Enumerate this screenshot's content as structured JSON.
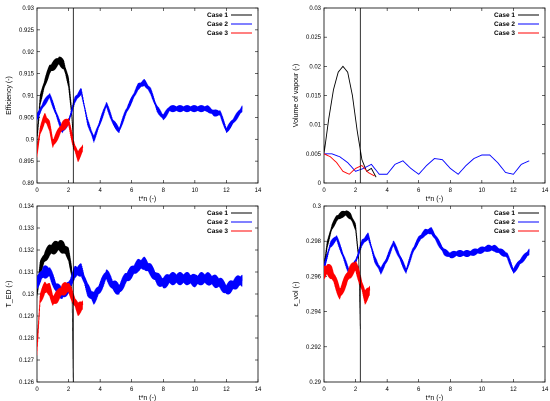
{
  "colors": {
    "case1": "#000000",
    "case2": "#0000ff",
    "case3": "#ff0000"
  },
  "chart_data": [
    {
      "type": "line",
      "xlabel": "t*n (-)",
      "ylabel": "Efficiency (-)",
      "xlim": [
        0,
        14
      ],
      "ylim": [
        0.89,
        0.93
      ],
      "xticks": [
        "0",
        "2",
        "4",
        "6",
        "8",
        "10",
        "12",
        "14"
      ],
      "yticks": [
        "0.89",
        "0.895",
        "0.9",
        "0.905",
        "0.91",
        "0.915",
        "0.92",
        "0.925",
        "0.93"
      ],
      "vline": 2.3,
      "legend_position": "top-right",
      "series": [
        {
          "name": "Case 1",
          "x": [
            0,
            0.2,
            0.5,
            0.8,
            1.1,
            1.4,
            1.7,
            2.0,
            2.2,
            2.3
          ],
          "y": [
            0.9,
            0.909,
            0.913,
            0.916,
            0.917,
            0.918,
            0.917,
            0.913,
            0.906,
            0.9
          ],
          "band": 0.0012
        },
        {
          "name": "Case 2",
          "x": [
            0,
            0.4,
            0.8,
            1.2,
            1.6,
            2.0,
            2.4,
            2.8,
            3.2,
            3.6,
            4.0,
            4.4,
            4.8,
            5.2,
            5.6,
            6.0,
            6.4,
            6.8,
            7.2,
            7.6,
            8.0,
            8.4,
            8.8,
            9.2,
            9.6,
            10.0,
            10.4,
            10.8,
            11.2,
            11.6,
            12.0,
            12.4,
            12.8,
            13.0
          ],
          "y": [
            0.905,
            0.908,
            0.91,
            0.906,
            0.902,
            0.904,
            0.909,
            0.911,
            0.904,
            0.9,
            0.904,
            0.908,
            0.904,
            0.902,
            0.906,
            0.909,
            0.912,
            0.913,
            0.911,
            0.907,
            0.905,
            0.907,
            0.907,
            0.907,
            0.907,
            0.907,
            0.907,
            0.907,
            0.906,
            0.906,
            0.902,
            0.904,
            0.906,
            0.907
          ],
          "band": 0.0008
        },
        {
          "name": "Case 3",
          "x": [
            0,
            0.2,
            0.5,
            0.8,
            1.0,
            1.3,
            1.6,
            2.0,
            2.3,
            2.6,
            2.9
          ],
          "y": [
            0.897,
            0.902,
            0.905,
            0.903,
            0.899,
            0.901,
            0.903,
            0.904,
            0.899,
            0.896,
            0.898
          ],
          "band": 0.0012
        }
      ]
    },
    {
      "type": "line",
      "xlabel": "t*n (-)",
      "ylabel": "Volume of vapour (-)",
      "xlim": [
        0,
        14
      ],
      "ylim": [
        0,
        0.03
      ],
      "xticks": [
        "0",
        "2",
        "4",
        "6",
        "8",
        "10",
        "12",
        "14"
      ],
      "yticks": [
        "0",
        "0.005",
        "0.01",
        "0.015",
        "0.02",
        "0.025",
        "0.03"
      ],
      "vline": 2.3,
      "legend_position": "top-right",
      "series": [
        {
          "name": "Case 1",
          "x": [
            0,
            0.3,
            0.6,
            0.9,
            1.2,
            1.5,
            1.8,
            2.1,
            2.4,
            2.7,
            3.0,
            3.3
          ],
          "y": [
            0.005,
            0.011,
            0.016,
            0.019,
            0.02,
            0.019,
            0.015,
            0.009,
            0.004,
            0.002,
            0.0025,
            0.001
          ],
          "band": 0
        },
        {
          "name": "Case 2",
          "x": [
            0,
            0.5,
            1.0,
            1.5,
            2.0,
            2.5,
            3.0,
            3.5,
            4.0,
            4.5,
            5.0,
            5.5,
            6.0,
            6.5,
            7.0,
            7.5,
            8.0,
            8.5,
            9.0,
            9.5,
            10.0,
            10.5,
            11.0,
            11.5,
            12.0,
            12.5,
            13.0
          ],
          "y": [
            0.005,
            0.005,
            0.0045,
            0.0035,
            0.002,
            0.0025,
            0.0032,
            0.0015,
            0.0015,
            0.0032,
            0.0038,
            0.0025,
            0.0015,
            0.003,
            0.0042,
            0.004,
            0.0025,
            0.0015,
            0.003,
            0.0042,
            0.0048,
            0.0048,
            0.0035,
            0.0018,
            0.0015,
            0.0032,
            0.0038
          ],
          "band": 0
        },
        {
          "name": "Case 3",
          "x": [
            0,
            0.4,
            0.8,
            1.2,
            1.6,
            2.0,
            2.4,
            2.8,
            3.2
          ],
          "y": [
            0.005,
            0.0045,
            0.0035,
            0.002,
            0.0015,
            0.0025,
            0.003,
            0.0018,
            0.0012
          ],
          "band": 0
        }
      ]
    },
    {
      "type": "line",
      "xlabel": "t*n (-)",
      "ylabel": "T_ED (-)",
      "xlim": [
        0,
        14
      ],
      "ylim": [
        0.126,
        0.134
      ],
      "xticks": [
        "0",
        "2",
        "4",
        "6",
        "8",
        "10",
        "12",
        "14"
      ],
      "yticks": [
        "0.126",
        "0.127",
        "0.128",
        "0.129",
        "0.13",
        "0.131",
        "0.132",
        "0.133",
        "0.134"
      ],
      "vline": 2.3,
      "legend_position": "top-right",
      "series": [
        {
          "name": "Case 1",
          "x": [
            0,
            0.2,
            0.5,
            0.8,
            1.1,
            1.4,
            1.7,
            2.0,
            2.2,
            2.3
          ],
          "y": [
            0.13,
            0.1312,
            0.1317,
            0.132,
            0.1321,
            0.1322,
            0.1321,
            0.1318,
            0.131,
            0.126
          ],
          "band": 0.0003
        },
        {
          "name": "Case 2",
          "x": [
            0,
            0.4,
            0.8,
            1.2,
            1.6,
            2.0,
            2.4,
            2.8,
            3.2,
            3.6,
            4.0,
            4.4,
            4.8,
            5.2,
            5.6,
            6.0,
            6.4,
            6.8,
            7.2,
            7.6,
            8.0,
            8.4,
            8.8,
            9.2,
            9.6,
            10.0,
            10.4,
            10.8,
            11.2,
            11.6,
            12.0,
            12.4,
            12.8,
            13.0
          ],
          "y": [
            0.1305,
            0.131,
            0.131,
            0.1303,
            0.13,
            0.1303,
            0.131,
            0.1311,
            0.1302,
            0.1298,
            0.1303,
            0.1309,
            0.1304,
            0.1302,
            0.1307,
            0.131,
            0.1313,
            0.1314,
            0.1311,
            0.1307,
            0.1305,
            0.1307,
            0.1307,
            0.1307,
            0.1307,
            0.1306,
            0.1307,
            0.1307,
            0.1306,
            0.1305,
            0.1302,
            0.1304,
            0.1306,
            0.1306
          ],
          "band": 0.0003
        },
        {
          "name": "Case 3",
          "x": [
            0,
            0.2,
            0.5,
            0.8,
            1.0,
            1.3,
            1.6,
            2.0,
            2.3,
            2.6,
            2.9
          ],
          "y": [
            0.1275,
            0.1298,
            0.1303,
            0.1302,
            0.1297,
            0.1299,
            0.1302,
            0.1303,
            0.1298,
            0.1293,
            0.1295
          ],
          "band": 0.0003
        }
      ]
    },
    {
      "type": "line",
      "xlabel": "t*n (-)",
      "ylabel": "ε_vol (-)",
      "xlim": [
        0,
        14
      ],
      "ylim": [
        0.29,
        0.3
      ],
      "xticks": [
        "0",
        "2",
        "4",
        "6",
        "8",
        "10",
        "12",
        "14"
      ],
      "yticks": [
        "0.29",
        "0.292",
        "0.294",
        "0.296",
        "0.298",
        "0.3"
      ],
      "vline": 2.3,
      "legend_position": "top-right",
      "series": [
        {
          "name": "Case 1",
          "x": [
            0,
            0.2,
            0.5,
            0.8,
            1.1,
            1.4,
            1.7,
            2.0,
            2.2,
            2.3
          ],
          "y": [
            0.2965,
            0.2978,
            0.2988,
            0.2993,
            0.2995,
            0.2996,
            0.2994,
            0.2988,
            0.297,
            0.293
          ],
          "band": 0.0002
        },
        {
          "name": "Case 2",
          "x": [
            0,
            0.4,
            0.8,
            1.2,
            1.6,
            2.0,
            2.4,
            2.8,
            3.2,
            3.6,
            4.0,
            4.4,
            4.8,
            5.2,
            5.6,
            6.0,
            6.4,
            6.8,
            7.2,
            7.6,
            8.0,
            8.4,
            8.8,
            9.2,
            9.6,
            10.0,
            10.4,
            10.8,
            11.2,
            11.6,
            12.0,
            12.4,
            12.8,
            13.0
          ],
          "y": [
            0.2965,
            0.2978,
            0.2982,
            0.2972,
            0.2962,
            0.2968,
            0.2979,
            0.2983,
            0.297,
            0.2963,
            0.297,
            0.2979,
            0.2971,
            0.2963,
            0.2974,
            0.2981,
            0.2985,
            0.2986,
            0.298,
            0.2974,
            0.2972,
            0.2973,
            0.2973,
            0.2973,
            0.2974,
            0.2975,
            0.2976,
            0.2976,
            0.2974,
            0.2972,
            0.2963,
            0.2968,
            0.2972,
            0.2974
          ],
          "band": 0.0002
        },
        {
          "name": "Case 3",
          "x": [
            0,
            0.2,
            0.5,
            0.8,
            1.0,
            1.3,
            1.6,
            2.0,
            2.3,
            2.6,
            2.9
          ],
          "y": [
            0.2962,
            0.2964,
            0.2962,
            0.2955,
            0.295,
            0.2956,
            0.2962,
            0.2966,
            0.2958,
            0.2948,
            0.2952
          ],
          "band": 0.0004
        }
      ]
    }
  ]
}
